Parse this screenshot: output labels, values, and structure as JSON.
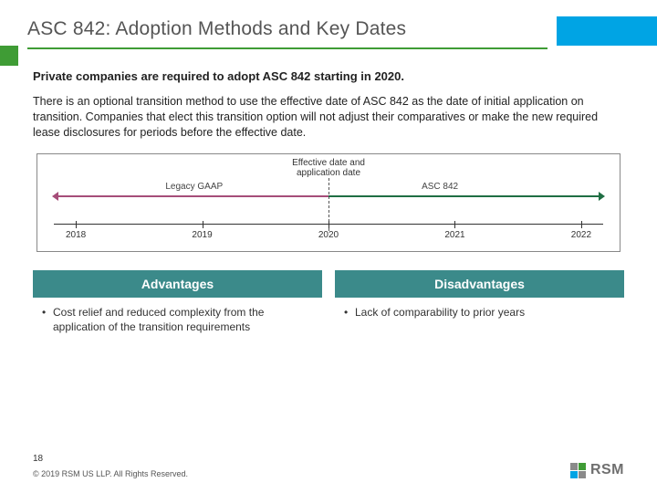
{
  "title": "ASC 842: Adoption Methods and Key Dates",
  "lead": "Private companies are required to adopt ASC 842 starting in 2020.",
  "paragraph": "There is an optional transition method to use the effective date of ASC 842 as the date of initial application on transition. Companies that elect this transition option will not adjust their comparatives or make the new required lease disclosures for periods before the effective date.",
  "timeline": {
    "center_label_line1": "Effective date and",
    "center_label_line2": "application date",
    "left_segment_label": "Legacy GAAP",
    "right_segment_label": "ASC 842",
    "left_color": "#a64d79",
    "right_color": "#1f6e43",
    "axis_color": "#333333",
    "border_color": "#888888",
    "years": [
      "2018",
      "2019",
      "2020",
      "2021",
      "2022"
    ],
    "tick_positions_pct": [
      4,
      27,
      50,
      73,
      96
    ]
  },
  "columns": {
    "advantages": {
      "header": "Advantages",
      "items": [
        "Cost relief and reduced complexity from the application of the transition requirements"
      ]
    },
    "disadvantages": {
      "header": "Disadvantages",
      "items": [
        "Lack of comparability to prior years"
      ]
    },
    "header_bg": "#3b8a8a",
    "header_fg": "#ffffff"
  },
  "footer": {
    "page": "18",
    "copyright": "© 2019 RSM US LLP. All Rights Reserved.",
    "logo_text": "RSM",
    "logo_colors": {
      "tl": "#8a8a8a",
      "tr": "#3f9c35",
      "bl": "#00a4e4",
      "br": "#8a8a8a"
    }
  },
  "accent": {
    "green": "#3f9c35",
    "cyan": "#00a4e4"
  }
}
